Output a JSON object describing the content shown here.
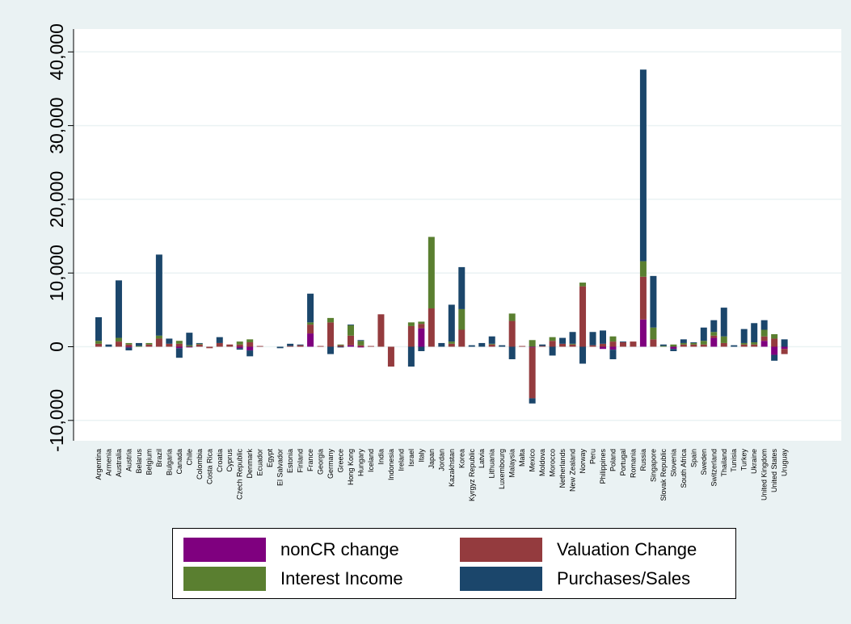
{
  "chart_data": {
    "type": "bar",
    "stacked": true,
    "ylim": [
      -10000,
      40000
    ],
    "yticks": [
      -10000,
      0,
      10000,
      20000,
      30000,
      40000
    ],
    "ytick_labels": [
      "-10,000",
      "0",
      "10,000",
      "20,000",
      "30,000",
      "40,000"
    ],
    "grid": true,
    "legend_position": "bottom",
    "categories": [
      "Argentina",
      "Armenia",
      "Australia",
      "Austria",
      "Belarus",
      "Belgium",
      "Brazil",
      "Bulgaria",
      "Canada",
      "Chile",
      "Colombia",
      "Costa Rica",
      "Croatia",
      "Cyprus",
      "Czech Republic",
      "Denmark",
      "Ecuador",
      "Egypt",
      "El Salvador",
      "Estonia",
      "Finland",
      "France",
      "Georgia",
      "Germany",
      "Greece",
      "Hong Kong",
      "Hungary",
      "Iceland",
      "India",
      "Indonesia",
      "Ireland",
      "Israel",
      "Italy",
      "Japan",
      "Jordan",
      "Kazakhstan",
      "Korea",
      "Kyrgyz Republic",
      "Latvia",
      "Lithuania",
      "Luxembourg",
      "Malaysia",
      "Malta",
      "Mexico",
      "Moldova",
      "Morocco",
      "Netherlands",
      "New Zealand",
      "Norway",
      "Peru",
      "Philippines",
      "Poland",
      "Portugal",
      "Romania",
      "Russia",
      "Singapore",
      "Slovak Republic",
      "Slovenia",
      "South Africa",
      "Spain",
      "Sweden",
      "Switzerland",
      "Thailand",
      "Tunisia",
      "Turkey",
      "Ukraine",
      "United Kingdom",
      "United States",
      "Uruguay"
    ],
    "series": [
      {
        "name": "nonCR change",
        "color": "#7f007f",
        "values": [
          0,
          0,
          0,
          -100,
          0,
          0,
          0,
          0,
          -200,
          -100,
          0,
          0,
          0,
          0,
          -200,
          -500,
          0,
          0,
          0,
          0,
          0,
          1800,
          0,
          0,
          0,
          200,
          -100,
          0,
          0,
          0,
          0,
          0,
          2500,
          0,
          0,
          0,
          0,
          0,
          0,
          0,
          0,
          0,
          0,
          -100,
          0,
          0,
          0,
          0,
          0,
          0,
          -300,
          -400,
          0,
          0,
          3700,
          0,
          0,
          -300,
          0,
          0,
          0,
          1200,
          0,
          0,
          0,
          0,
          800,
          -1100,
          -300
        ]
      },
      {
        "name": "Valuation Change",
        "color": "#943b3e",
        "values": [
          400,
          0,
          700,
          300,
          0,
          300,
          1100,
          400,
          400,
          0,
          300,
          -200,
          500,
          300,
          300,
          600,
          100,
          0,
          0,
          100,
          200,
          1200,
          100,
          3300,
          200,
          1300,
          200,
          100,
          4400,
          -2700,
          0,
          2800,
          600,
          5200,
          0,
          400,
          2300,
          0,
          0,
          300,
          0,
          3500,
          100,
          -6900,
          100,
          800,
          400,
          300,
          8200,
          200,
          400,
          700,
          600,
          700,
          5800,
          1000,
          0,
          0,
          300,
          300,
          300,
          300,
          500,
          0,
          300,
          300,
          600,
          1100,
          -700
        ]
      },
      {
        "name": "Interest Income",
        "color": "#5a7f30",
        "values": [
          400,
          0,
          500,
          200,
          100,
          200,
          400,
          0,
          400,
          200,
          100,
          0,
          0,
          0,
          400,
          400,
          0,
          0,
          0,
          0,
          0,
          300,
          0,
          600,
          100,
          1400,
          600,
          0,
          0,
          0,
          0,
          500,
          300,
          9700,
          0,
          300,
          2800,
          0,
          0,
          100,
          0,
          1000,
          0,
          900,
          0,
          500,
          0,
          100,
          500,
          0,
          0,
          700,
          0,
          0,
          2100,
          1600,
          100,
          300,
          200,
          200,
          500,
          500,
          900,
          0,
          200,
          300,
          900,
          600,
          0
        ]
      },
      {
        "name": "Purchases/Sales",
        "color": "#1b466b",
        "values": [
          3200,
          300,
          7800,
          -400,
          400,
          0,
          11000,
          700,
          -1300,
          1700,
          100,
          0,
          800,
          0,
          -200,
          -800,
          0,
          0,
          -200,
          300,
          100,
          3900,
          0,
          -1000,
          -100,
          100,
          100,
          0,
          0,
          0,
          0,
          -2700,
          -600,
          0,
          500,
          5000,
          5700,
          200,
          500,
          1000,
          200,
          -1700,
          0,
          -700,
          200,
          -1200,
          800,
          1600,
          -2300,
          1800,
          1800,
          -1300,
          100,
          0,
          26000,
          7000,
          200,
          -300,
          500,
          100,
          1800,
          1600,
          3900,
          200,
          1900,
          2600,
          1300,
          -800,
          1000
        ]
      }
    ]
  },
  "legend": {
    "items": [
      {
        "label": "nonCR change",
        "color": "#7f007f"
      },
      {
        "label": "Valuation Change",
        "color": "#943b3e"
      },
      {
        "label": "Interest Income",
        "color": "#5a7f30"
      },
      {
        "label": "Purchases/Sales",
        "color": "#1b466b"
      }
    ]
  }
}
